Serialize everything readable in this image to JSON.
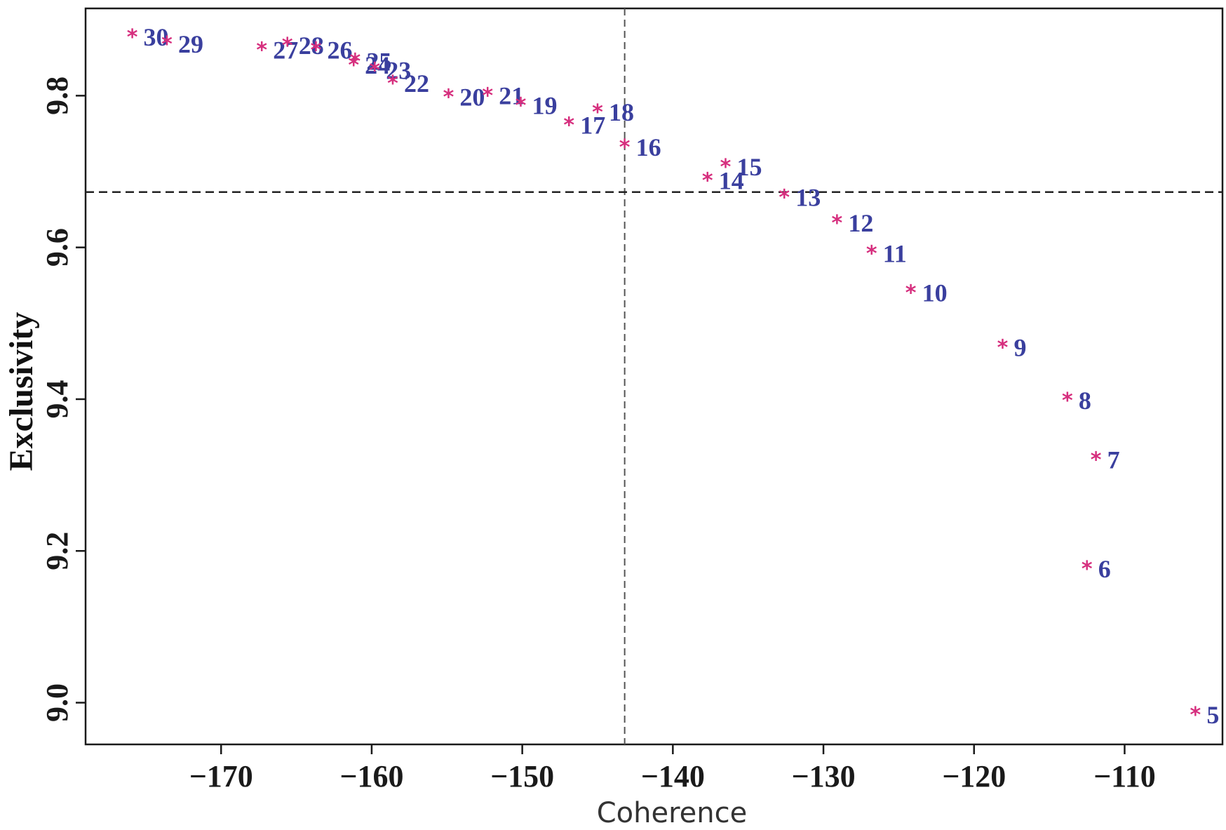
{
  "chart_data": {
    "type": "scatter",
    "title": "",
    "xlabel": "Coherence",
    "ylabel": "Exclusivity",
    "xlim": [
      -179,
      -103.5
    ],
    "ylim": [
      8.945,
      9.915
    ],
    "xticks": [
      -170,
      -160,
      -150,
      -140,
      -130,
      -120,
      -110
    ],
    "yticks": [
      9.0,
      9.2,
      9.4,
      9.6,
      9.8
    ],
    "xtick_labels": [
      "−170",
      "−160",
      "−150",
      "−140",
      "−130",
      "−120",
      "−110"
    ],
    "ytick_labels": [
      "9.0",
      "9.2",
      "9.4",
      "9.6",
      "9.8"
    ],
    "grid": false,
    "reference_lines": {
      "x": -143.2,
      "y": 9.673
    },
    "marker": "*",
    "colors": {
      "marker": "#d62f7e",
      "label": "#3a3f9e",
      "axis": "#1a1a1a"
    },
    "points": [
      {
        "label": "30",
        "x": -175.9,
        "y": 9.877
      },
      {
        "label": "29",
        "x": -173.6,
        "y": 9.868
      },
      {
        "label": "27",
        "x": -167.3,
        "y": 9.86
      },
      {
        "label": "28",
        "x": -165.6,
        "y": 9.866
      },
      {
        "label": "26",
        "x": -163.7,
        "y": 9.86
      },
      {
        "label": "25",
        "x": -161.1,
        "y": 9.845
      },
      {
        "label": "24",
        "x": -161.2,
        "y": 9.84
      },
      {
        "label": "23",
        "x": -159.8,
        "y": 9.833
      },
      {
        "label": "22",
        "x": -158.6,
        "y": 9.816
      },
      {
        "label": "20",
        "x": -154.9,
        "y": 9.798
      },
      {
        "label": "21",
        "x": -152.3,
        "y": 9.8
      },
      {
        "label": "19",
        "x": -150.1,
        "y": 9.787
      },
      {
        "label": "18",
        "x": -145.0,
        "y": 9.778
      },
      {
        "label": "17",
        "x": -146.9,
        "y": 9.761
      },
      {
        "label": "16",
        "x": -143.2,
        "y": 9.732
      },
      {
        "label": "15",
        "x": -136.5,
        "y": 9.706
      },
      {
        "label": "14",
        "x": -137.7,
        "y": 9.688
      },
      {
        "label": "13",
        "x": -132.6,
        "y": 9.666
      },
      {
        "label": "12",
        "x": -129.1,
        "y": 9.632
      },
      {
        "label": "11",
        "x": -126.8,
        "y": 9.592
      },
      {
        "label": "10",
        "x": -124.2,
        "y": 9.54
      },
      {
        "label": "9",
        "x": -118.1,
        "y": 9.468
      },
      {
        "label": "8",
        "x": -113.8,
        "y": 9.398
      },
      {
        "label": "7",
        "x": -111.9,
        "y": 9.32
      },
      {
        "label": "6",
        "x": -112.5,
        "y": 9.176
      },
      {
        "label": "5",
        "x": -105.3,
        "y": 8.984
      }
    ]
  }
}
